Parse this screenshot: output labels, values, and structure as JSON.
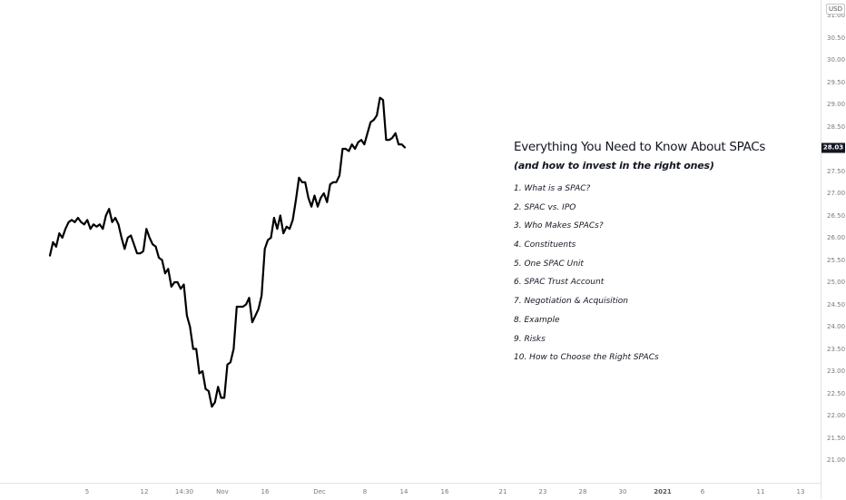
{
  "chart_data": {
    "type": "line",
    "currency": "USD",
    "last_price": "28.03",
    "ylim": [
      20.6,
      31.2
    ],
    "y_ticks": [
      "31.00",
      "30.50",
      "30.00",
      "29.50",
      "29.00",
      "28.50",
      "28.00",
      "27.50",
      "27.00",
      "26.50",
      "26.00",
      "25.50",
      "25.00",
      "24.50",
      "24.00",
      "23.50",
      "23.00",
      "22.50",
      "22.00",
      "21.50",
      "21.00"
    ],
    "x_ticks": [
      {
        "label": "5",
        "year": false
      },
      {
        "label": "12",
        "year": false
      },
      {
        "label": "14:30",
        "year": false
      },
      {
        "label": "Nov",
        "year": false
      },
      {
        "label": "16",
        "year": false
      },
      {
        "label": "Dec",
        "year": false
      },
      {
        "label": "8",
        "year": false
      },
      {
        "label": "14",
        "year": false
      },
      {
        "label": "16",
        "year": false
      },
      {
        "label": "21",
        "year": false
      },
      {
        "label": "23",
        "year": false
      },
      {
        "label": "28",
        "year": false
      },
      {
        "label": "30",
        "year": false
      },
      {
        "label": "2021",
        "year": true
      },
      {
        "label": "6",
        "year": false
      },
      {
        "label": "11",
        "year": false
      },
      {
        "label": "13",
        "year": false
      }
    ],
    "series": [
      {
        "color": "#000000",
        "values": [
          25.6,
          25.9,
          25.8,
          26.1,
          26.0,
          26.2,
          26.35,
          26.4,
          26.35,
          26.45,
          26.35,
          26.3,
          26.4,
          26.2,
          26.3,
          26.25,
          26.3,
          26.2,
          26.5,
          26.65,
          26.35,
          26.45,
          26.3,
          26.0,
          25.75,
          26.0,
          26.05,
          25.85,
          25.65,
          25.65,
          25.7,
          26.2,
          26.0,
          25.85,
          25.8,
          25.55,
          25.5,
          25.2,
          25.3,
          24.9,
          25.0,
          25.0,
          24.85,
          24.95,
          24.25,
          24.0,
          23.5,
          23.5,
          22.95,
          23.0,
          22.6,
          22.55,
          22.2,
          22.3,
          22.65,
          22.4,
          22.4,
          23.15,
          23.2,
          23.5,
          24.45,
          24.45,
          24.45,
          24.5,
          24.65,
          24.1,
          24.25,
          24.4,
          24.7,
          25.75,
          25.95,
          26.0,
          26.45,
          26.2,
          26.5,
          26.1,
          26.25,
          26.2,
          26.4,
          26.85,
          27.35,
          27.25,
          27.25,
          26.9,
          26.7,
          26.95,
          26.7,
          26.9,
          27.0,
          26.8,
          27.2,
          27.25,
          27.25,
          27.4,
          28.0,
          28.0,
          27.95,
          28.1,
          28.0,
          28.15,
          28.2,
          28.1,
          28.35,
          28.6,
          28.65,
          28.75,
          29.15,
          29.1,
          28.2,
          28.2,
          28.25,
          28.35,
          28.1,
          28.1,
          28.03
        ]
      }
    ],
    "grid": false,
    "legend": "none"
  },
  "annotation": {
    "title": "Everything You Need to Know About SPACs",
    "subtitle": "(and how to invest in the right ones)",
    "items": [
      "1. What is a SPAC?",
      "2. SPAC vs. IPO",
      "3. Who Makes SPACs?",
      "4. Constituents",
      "5. One SPAC Unit",
      "6. SPAC Trust Account",
      "7. Negotiation & Acquisition",
      "8. Example",
      "9. Risks",
      "10. How to Choose the Right SPACs"
    ]
  }
}
